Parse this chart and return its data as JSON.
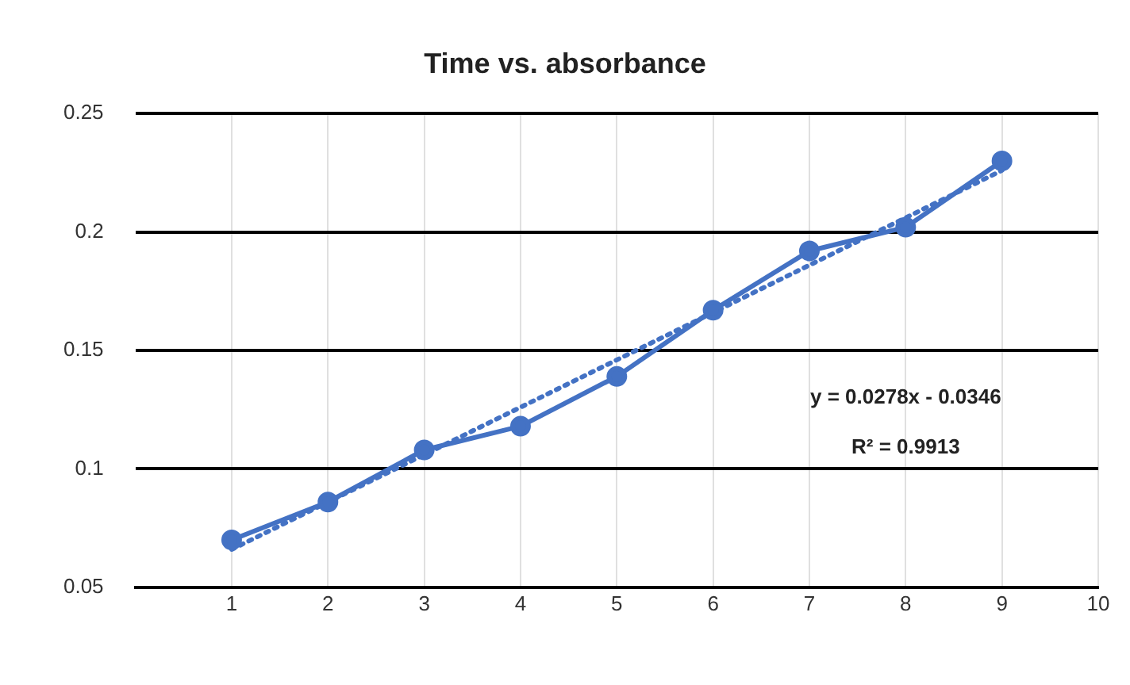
{
  "chart_data": {
    "type": "line",
    "title": "Time vs. absorbance",
    "x": [
      1,
      2,
      3,
      4,
      5,
      6,
      7,
      8,
      9
    ],
    "series": [
      {
        "color": "#4472c4",
        "values": [
          0.07,
          0.086,
          0.108,
          0.118,
          0.139,
          0.167,
          0.192,
          0.202,
          0.23
        ],
        "marker": "circle",
        "line_style": "solid"
      },
      {
        "color": "#4472c4",
        "x": [
          1,
          9
        ],
        "values": [
          0.066,
          0.226
        ],
        "marker": "none",
        "line_style": "dotted"
      }
    ],
    "xlim": [
      0,
      10
    ],
    "xticks": [
      1,
      2,
      3,
      4,
      5,
      6,
      7,
      8,
      9,
      10
    ],
    "ylim": [
      0.05,
      0.25
    ],
    "yticks": [
      0.05,
      0.1,
      0.15,
      0.2,
      0.25
    ],
    "grid": true,
    "legend": false,
    "annotations": [
      "y = 0.0278x - 0.0346",
      "R² = 0.9913"
    ]
  }
}
